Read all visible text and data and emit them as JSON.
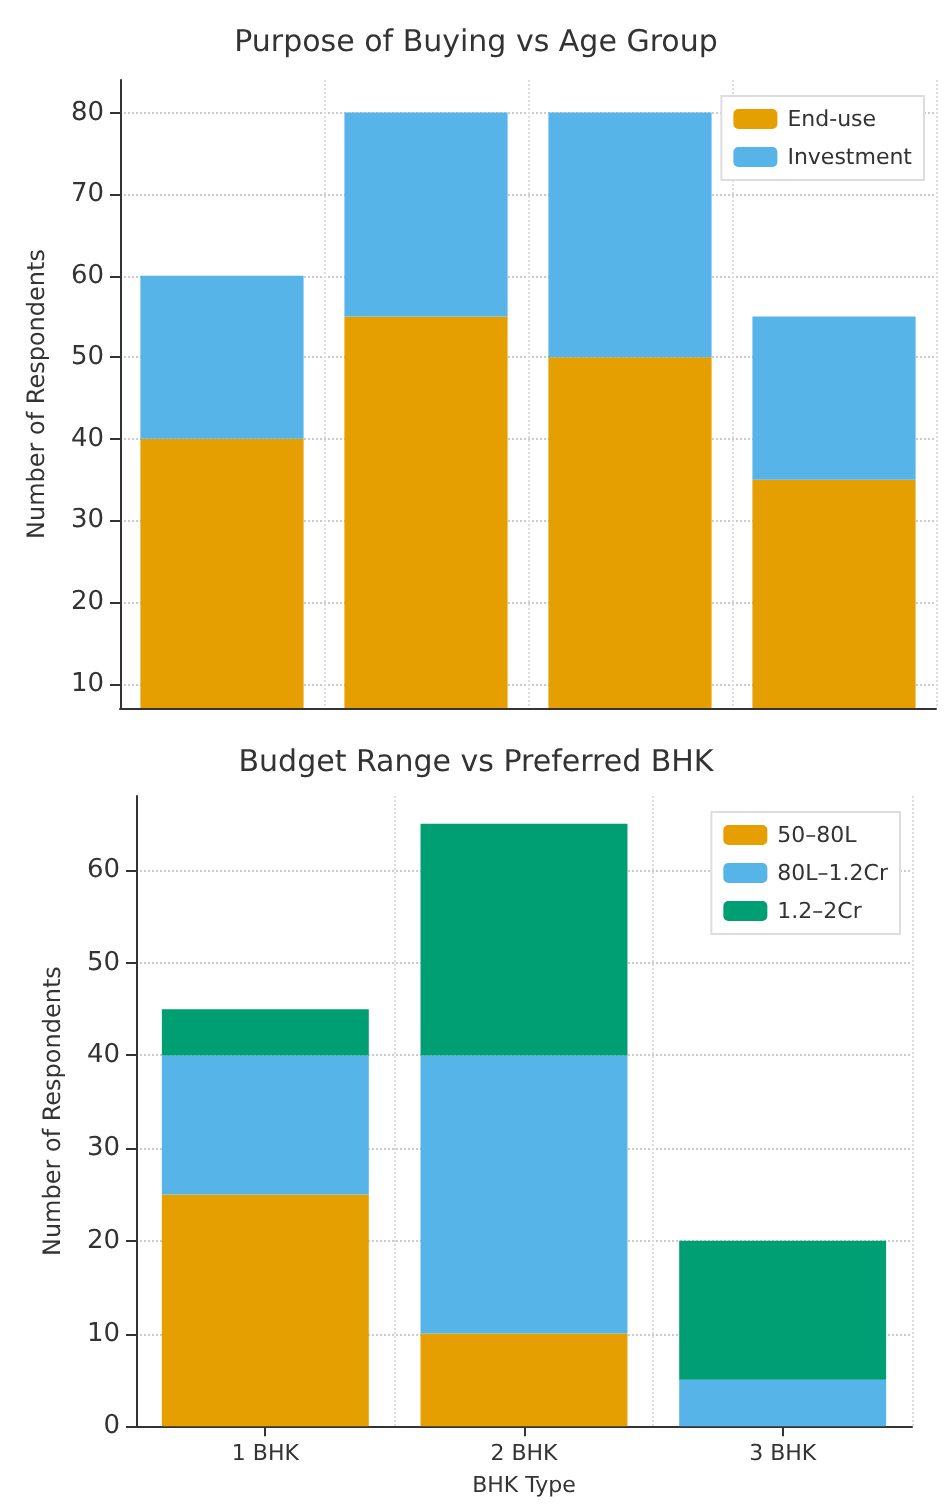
{
  "chart_data": [
    {
      "type": "bar",
      "title": "Purpose of Buying vs Age Group",
      "ylabel": "Number of Respondents",
      "categories": [
        null,
        null,
        null,
        null
      ],
      "stacked": true,
      "series": [
        {
          "name": "End-use",
          "color": "#e69f00",
          "values": [
            40,
            55,
            50,
            35
          ]
        },
        {
          "name": "Investment",
          "color": "#56b4e9",
          "values": [
            20,
            25,
            30,
            20
          ]
        }
      ],
      "ylim": [
        7,
        84
      ],
      "yticks": [
        10,
        20,
        30,
        40,
        50,
        60,
        70,
        80
      ],
      "grid": true,
      "legend": "top right",
      "tick_labels": "y"
    },
    {
      "type": "bar",
      "title": "Budget Range vs Preferred BHK",
      "xlabel": "BHK Type",
      "ylabel": "Number of Respondents",
      "categories": [
        "1 BHK",
        "2 BHK",
        "3 BHK"
      ],
      "stacked": true,
      "series": [
        {
          "name": "50–80L",
          "color": "#e69f00",
          "values": [
            25,
            10,
            0
          ]
        },
        {
          "name": "80L–1.2Cr",
          "color": "#56b4e9",
          "values": [
            15,
            30,
            5
          ]
        },
        {
          "name": "1.2–2Cr",
          "color": "#009e73",
          "values": [
            5,
            25,
            15
          ]
        }
      ],
      "ylim": [
        0,
        68
      ],
      "yticks": [
        0,
        10,
        20,
        30,
        40,
        50,
        60
      ],
      "grid": true,
      "legend": "top right"
    }
  ]
}
